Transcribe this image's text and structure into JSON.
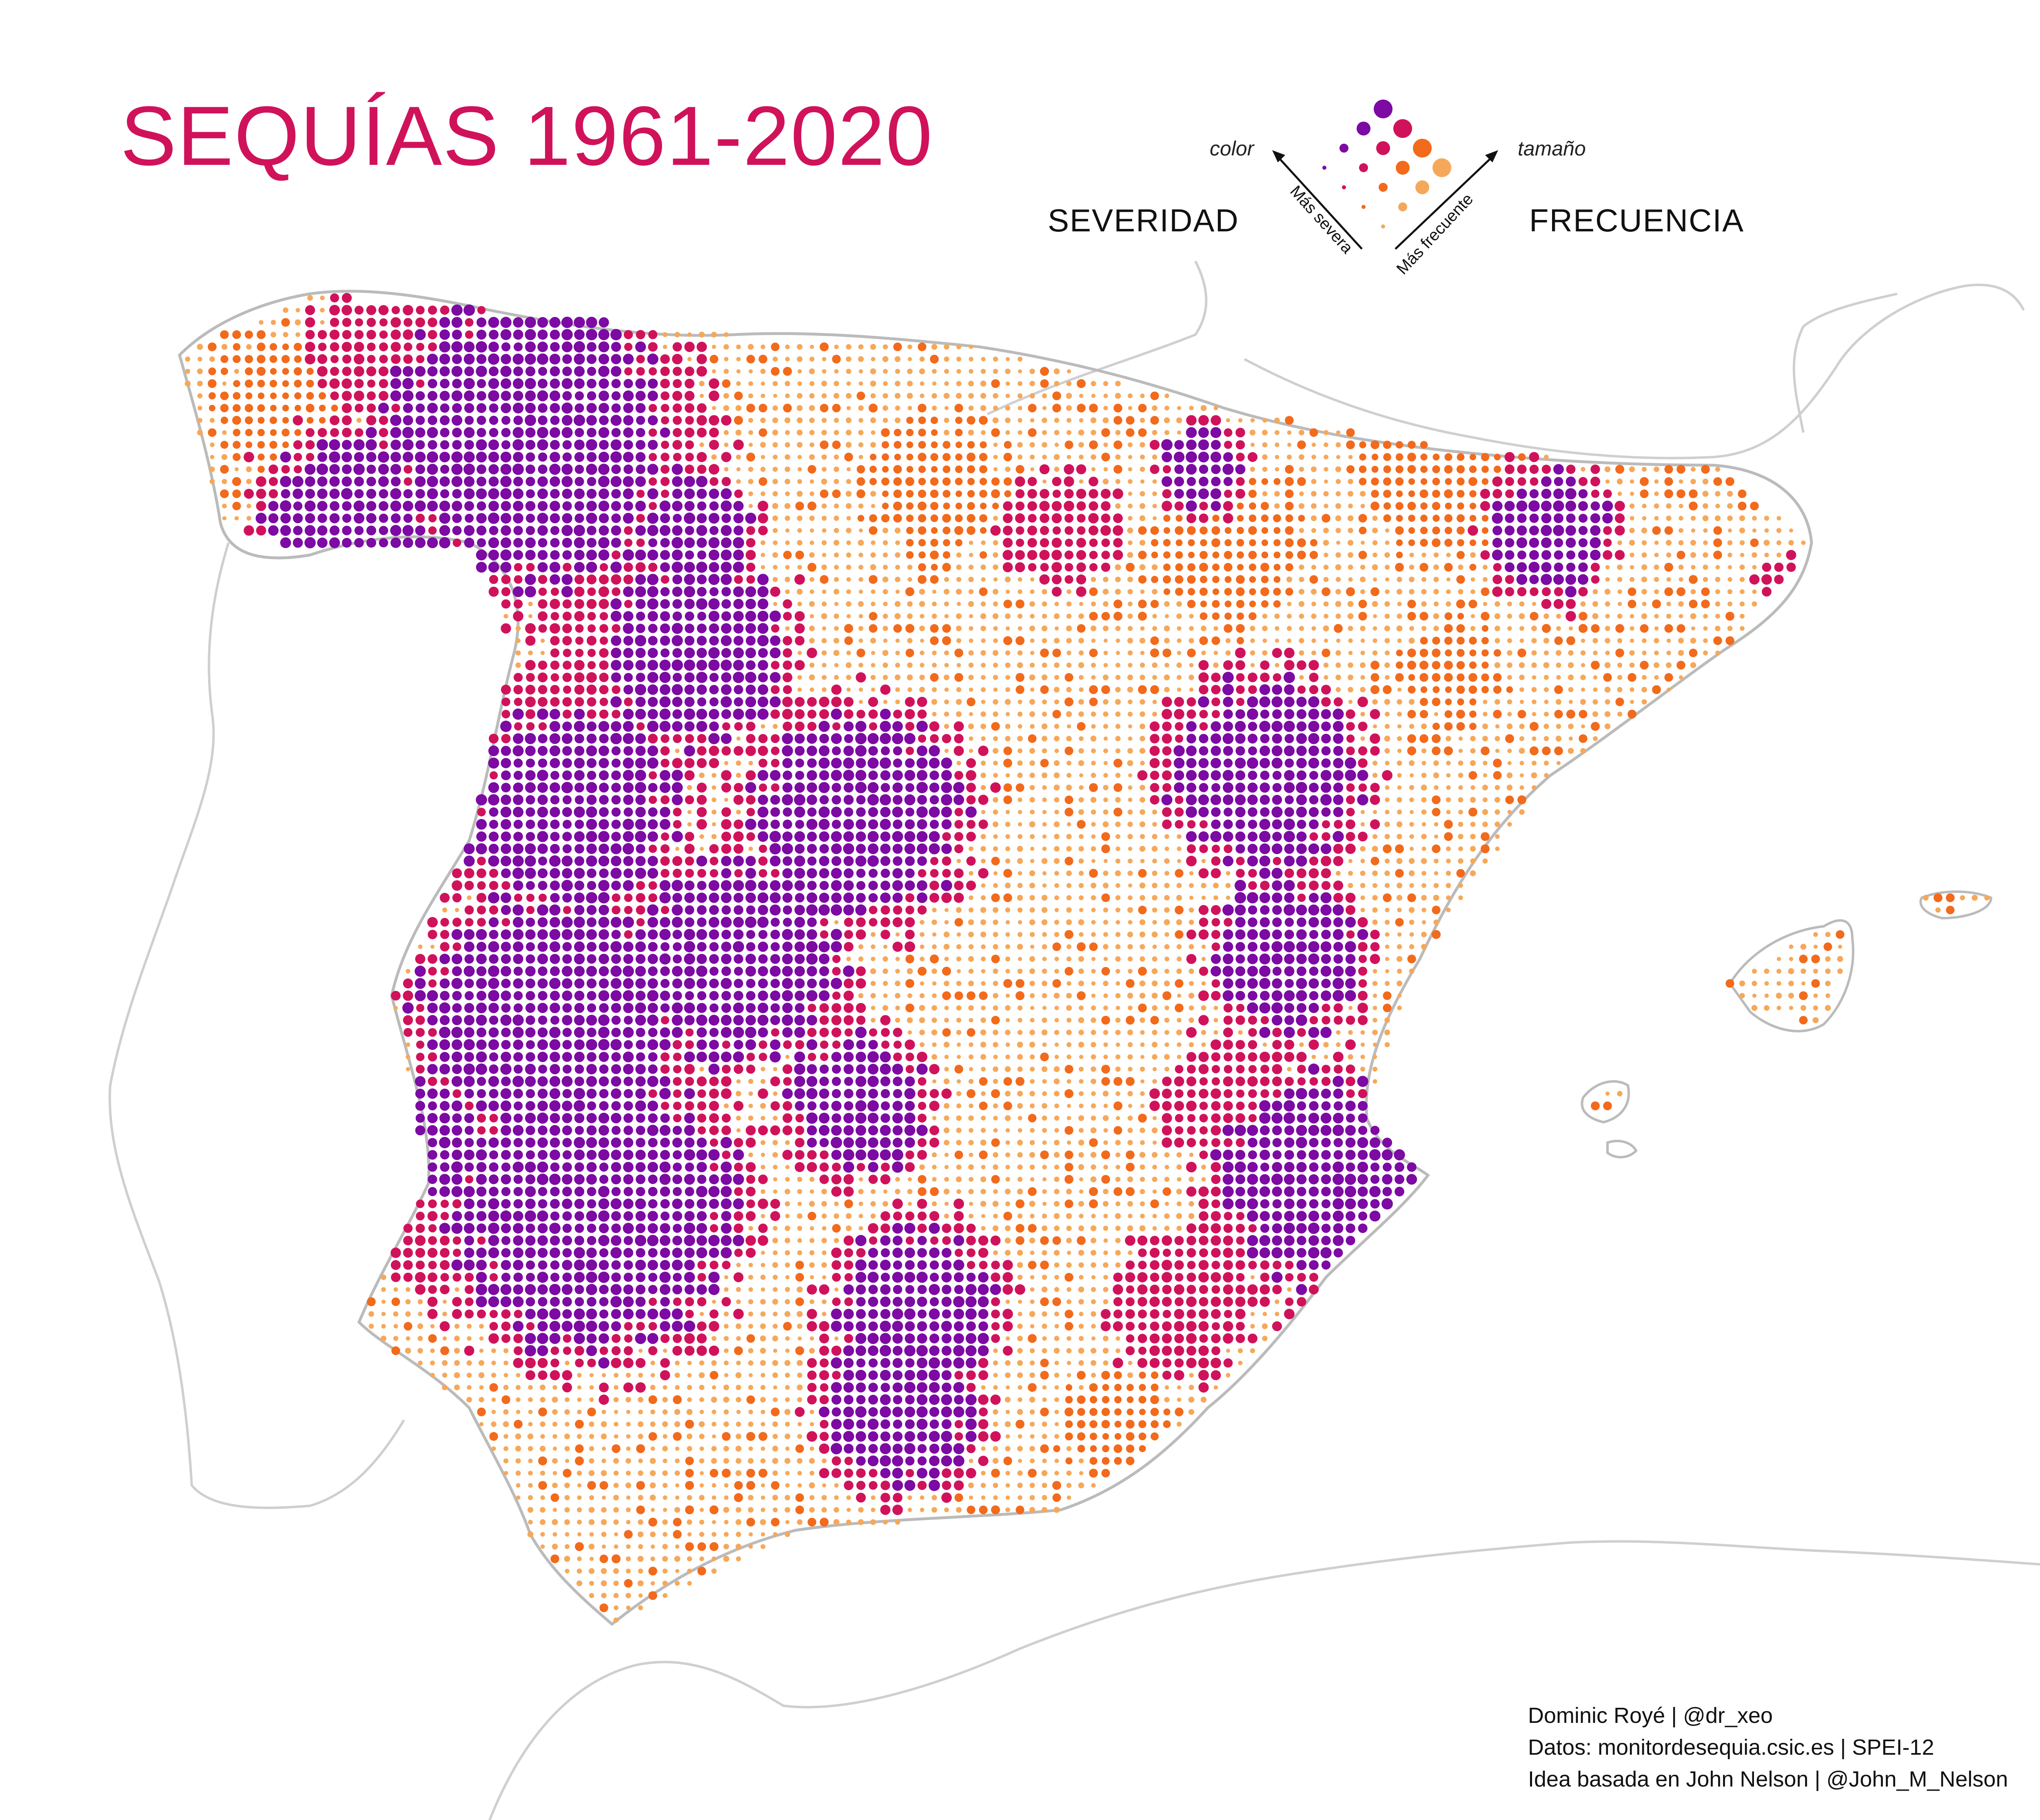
{
  "title": "SEQUÍAS 1961-2020",
  "legend": {
    "severity_label": "SEVERIDAD",
    "frequency_label": "FRECUENCIA",
    "color_label": "color",
    "size_label": "tamaño",
    "severity_axis": "Más severa",
    "frequency_axis": "Más frecuente",
    "severity_colors": [
      "#f6a85a",
      "#f26a1b",
      "#d0125b",
      "#7c0aa3"
    ]
  },
  "credits": {
    "line1": "Dominic Royé | @dr_xeo",
    "line2": "Datos: monitordesequia.csic.es | SPEI-12",
    "line3": "Idea basada en John Nelson | @John_M_Nelson"
  },
  "colors": {
    "title": "#d0125b",
    "land_outline": "#c9c9c9",
    "low": "#f6a85a",
    "medium": "#f26a1b",
    "high": "#d0125b",
    "extreme": "#7c0aa3"
  }
}
